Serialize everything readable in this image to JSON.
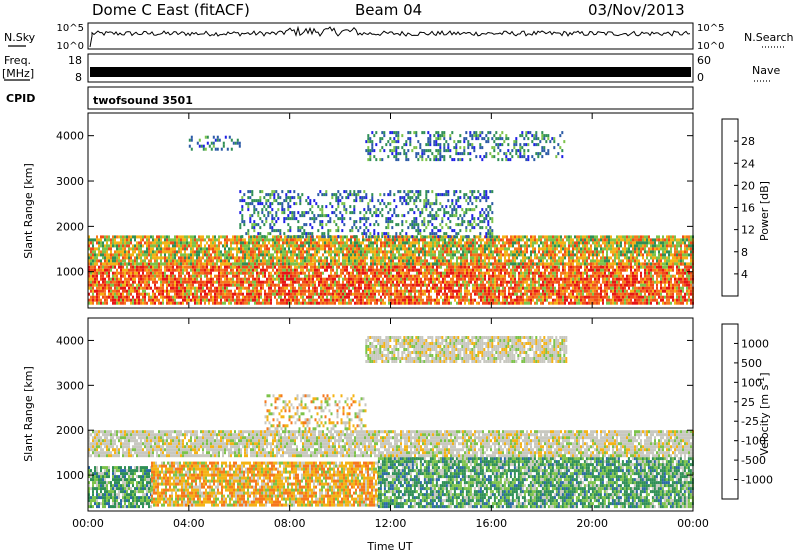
{
  "header": {
    "station": "Dome C East (fitACF)",
    "beam": "Beam 04",
    "date": "03/Nov/2013"
  },
  "top_panels": {
    "nsky": {
      "label": "N.Sky",
      "ticks": [
        "10^5",
        "10^0"
      ]
    },
    "nsearch": {
      "label": "N.Search",
      "ticks": [
        "10^5",
        "10^0"
      ]
    },
    "freq": {
      "label_line1": "Freq.",
      "label_line2": "[MHz]",
      "ticks": [
        "18",
        "8"
      ]
    },
    "nave": {
      "label": "Nave",
      "ticks": [
        "60",
        "0"
      ]
    },
    "cpid": {
      "label": "CPID",
      "program": "twofsound 3501"
    }
  },
  "chart_data": [
    {
      "type": "heatmap",
      "name": "power",
      "ylabel": "Slant Range [km]",
      "yticks": [
        "1000",
        "2000",
        "3000",
        "4000"
      ],
      "ylim": [
        200,
        4500
      ],
      "xticks": [
        "00:00",
        "04:00",
        "08:00",
        "12:00",
        "16:00",
        "20:00",
        "00:00"
      ],
      "xlim_hours": [
        0,
        24
      ],
      "colorbar": {
        "label": "Power [dB]",
        "ticks": [
          "4",
          "8",
          "12",
          "16",
          "20",
          "24",
          "28"
        ],
        "colors": [
          "#1f1fe6",
          "#2b5aa6",
          "#2f8f55",
          "#7cc34a",
          "#f4b316",
          "#f6781d",
          "#f04a1a",
          "#e61515"
        ]
      },
      "echo_bands": [
        {
          "start_h": 0,
          "end_h": 24,
          "range_km": [
            300,
            1200
          ],
          "level": "strong"
        },
        {
          "start_h": 0,
          "end_h": 24,
          "range_km": [
            1200,
            1800
          ],
          "level": "medium"
        },
        {
          "start_h": 6,
          "end_h": 16,
          "range_km": [
            1800,
            2800
          ],
          "level": "weak"
        },
        {
          "start_h": 11,
          "end_h": 19,
          "range_km": [
            3500,
            4100
          ],
          "level": "weak"
        },
        {
          "start_h": 4,
          "end_h": 6,
          "range_km": [
            3700,
            4000
          ],
          "level": "weak"
        }
      ]
    },
    {
      "type": "heatmap",
      "name": "velocity",
      "ylabel": "Slant Range [km]",
      "yticks": [
        "1000",
        "2000",
        "3000",
        "4000"
      ],
      "ylim": [
        200,
        4500
      ],
      "xticks": [
        "00:00",
        "04:00",
        "08:00",
        "12:00",
        "16:00",
        "20:00",
        "00:00"
      ],
      "xlim_hours": [
        0,
        24
      ],
      "xlabel": "Time UT",
      "colorbar": {
        "label": "Velocity [m s",
        "label_sup": "-1",
        "label_end": "]",
        "ticks": [
          "1000",
          "500",
          "100",
          "25",
          "-25",
          "-100",
          "-500",
          "-1000"
        ],
        "colors": [
          "#1f3fd0",
          "#2b6aa6",
          "#2f8f55",
          "#7cc34a",
          "#c8c8c0",
          "#f4b316",
          "#f6781d",
          "#f04a1a",
          "#e61515"
        ]
      },
      "echo_bands": [
        {
          "start_h": 0,
          "end_h": 2.5,
          "range_km": [
            300,
            1200
          ],
          "level": "toward"
        },
        {
          "start_h": 2.5,
          "end_h": 11.5,
          "range_km": [
            300,
            1300
          ],
          "level": "away"
        },
        {
          "start_h": 11.5,
          "end_h": 24,
          "range_km": [
            300,
            1400
          ],
          "level": "toward"
        },
        {
          "start_h": 0,
          "end_h": 24,
          "range_km": [
            1400,
            2000
          ],
          "level": "zero"
        },
        {
          "start_h": 7,
          "end_h": 11,
          "range_km": [
            2000,
            2800
          ],
          "level": "away_weak"
        },
        {
          "start_h": 11,
          "end_h": 19,
          "range_km": [
            3500,
            4100
          ],
          "level": "zero"
        }
      ]
    }
  ]
}
